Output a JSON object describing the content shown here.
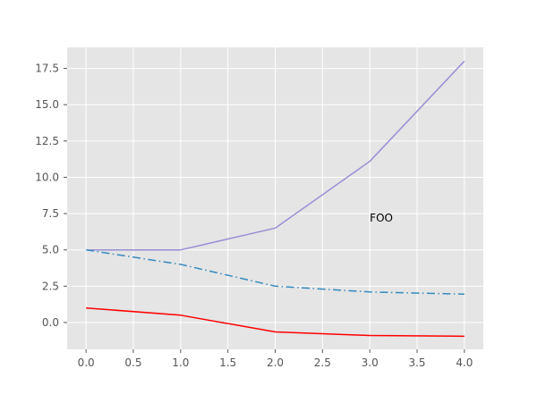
{
  "chart_data": {
    "type": "line",
    "title": "",
    "xlabel": "",
    "ylabel": "",
    "x": [
      0,
      1,
      2,
      3,
      4
    ],
    "xlim": [
      -0.2,
      4.2
    ],
    "ylim": [
      -1.85,
      18.95
    ],
    "xticks": [
      0.0,
      0.5,
      1.0,
      1.5,
      2.0,
      2.5,
      3.0,
      3.5,
      4.0
    ],
    "xtick_labels": [
      "0.0",
      "0.5",
      "1.0",
      "1.5",
      "2.0",
      "2.5",
      "3.0",
      "3.5",
      "4.0"
    ],
    "yticks": [
      0.0,
      2.5,
      5.0,
      7.5,
      10.0,
      12.5,
      15.0,
      17.5
    ],
    "ytick_labels": [
      "0.0",
      "2.5",
      "5.0",
      "7.5",
      "10.0",
      "12.5",
      "15.0",
      "17.5"
    ],
    "grid": true,
    "background_color": "#e5e5e5",
    "grid_color": "#ffffff",
    "series": [
      {
        "values": [
          5,
          5,
          6.5,
          11.1,
          18
        ],
        "color": "#988ed5",
        "style": "solid"
      },
      {
        "values": [
          5,
          4,
          2.5,
          2.1,
          1.95
        ],
        "color": "#348abd",
        "style": "dashdot"
      },
      {
        "values": [
          1,
          0.5,
          -0.65,
          -0.9,
          -0.95
        ],
        "color": "#ff0000",
        "style": "solid"
      }
    ],
    "annotations": [
      {
        "text": "FOO",
        "x": 3.0,
        "y": 7.2
      }
    ]
  }
}
